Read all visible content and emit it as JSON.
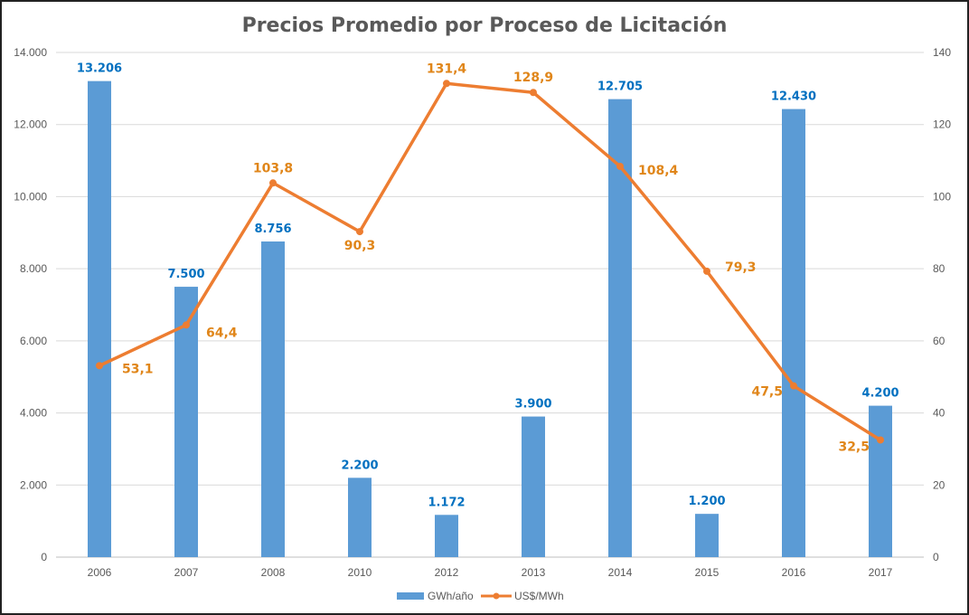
{
  "chart_data": {
    "type": "bar+line",
    "title": "Precios Promedio por Proceso de Licitación",
    "categories": [
      "2006",
      "2007",
      "2008",
      "2010",
      "2012",
      "2013",
      "2014",
      "2015",
      "2016",
      "2017"
    ],
    "series": [
      {
        "name": "GWh/año",
        "type": "bar",
        "axis": "left",
        "values": [
          13206,
          7500,
          8756,
          2200,
          1172,
          3900,
          12705,
          1200,
          12430,
          4200
        ],
        "labels": [
          "13.206",
          "7.500",
          "8.756",
          "2.200",
          "1.172",
          "3.900",
          "12.705",
          "1.200",
          "12.430",
          "4.200"
        ]
      },
      {
        "name": "US$/MWh",
        "type": "line",
        "axis": "right",
        "values": [
          53.1,
          64.4,
          103.8,
          90.3,
          131.4,
          128.9,
          108.4,
          79.3,
          47.5,
          32.5
        ],
        "labels": [
          "53,1",
          "64,4",
          "103,8",
          "90,3",
          "131,4",
          "128,9",
          "108,4",
          "79,3",
          "47,5",
          "32,5"
        ]
      }
    ],
    "y_left": {
      "range": [
        0,
        14000
      ],
      "ticks": [
        "0",
        "2.000",
        "4.000",
        "6.000",
        "8.000",
        "10.000",
        "12.000",
        "14.000"
      ]
    },
    "y_right": {
      "range": [
        0,
        140
      ],
      "ticks": [
        "0",
        "20",
        "40",
        "60",
        "80",
        "100",
        "120",
        "140"
      ]
    },
    "grid": true,
    "legend": "bottom",
    "colors": {
      "bar": "#5B9BD5",
      "line": "#ED7D31",
      "bar_label": "#0070C0",
      "line_label": "#E0861A"
    }
  }
}
